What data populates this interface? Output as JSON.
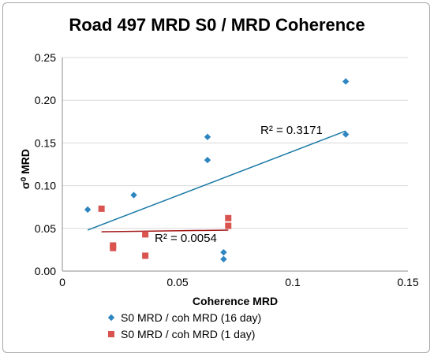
{
  "colors": {
    "series1": "#2e86c1",
    "series2": "#d9534f",
    "trend1": "#1b7aa6",
    "trend2": "#a31515"
  },
  "chart_data": {
    "type": "scatter",
    "title": "Road 497 MRD S0 / MRD Coherence",
    "xlabel": "Coherence MRD",
    "ylabel": "σ⁰ MRD",
    "xlim": [
      0,
      0.15
    ],
    "ylim": [
      0,
      0.25
    ],
    "x_ticks": [
      0,
      0.05,
      0.1,
      0.15
    ],
    "x_tick_labels": [
      "0",
      "0.05",
      "0.1",
      "0.15"
    ],
    "y_ticks": [
      0,
      0.05,
      0.1,
      0.15,
      0.2,
      0.25
    ],
    "y_tick_labels": [
      "0.00",
      "0.05",
      "0.10",
      "0.15",
      "0.20",
      "0.25"
    ],
    "grid": "horizontal",
    "legend_position": "bottom",
    "series": [
      {
        "name": "S0 MRD / coh MRD (16 day)",
        "marker": "diamond",
        "points": [
          [
            0.011,
            0.072
          ],
          [
            0.031,
            0.089
          ],
          [
            0.063,
            0.157
          ],
          [
            0.063,
            0.13
          ],
          [
            0.07,
            0.022
          ],
          [
            0.07,
            0.014
          ],
          [
            0.123,
            0.222
          ],
          [
            0.123,
            0.16
          ]
        ],
        "trendline": {
          "x": [
            0.011,
            0.123
          ],
          "y": [
            0.048,
            0.164
          ],
          "label": "R² = 0.3171"
        }
      },
      {
        "name": "S0 MRD / coh MRD (1 day)",
        "marker": "square",
        "points": [
          [
            0.017,
            0.073
          ],
          [
            0.022,
            0.03
          ],
          [
            0.022,
            0.027
          ],
          [
            0.036,
            0.043
          ],
          [
            0.036,
            0.018
          ],
          [
            0.072,
            0.062
          ],
          [
            0.072,
            0.053
          ]
        ],
        "trendline": {
          "x": [
            0.017,
            0.072
          ],
          "y": [
            0.046,
            0.048
          ],
          "label": "R² = 0.0054"
        }
      }
    ]
  }
}
